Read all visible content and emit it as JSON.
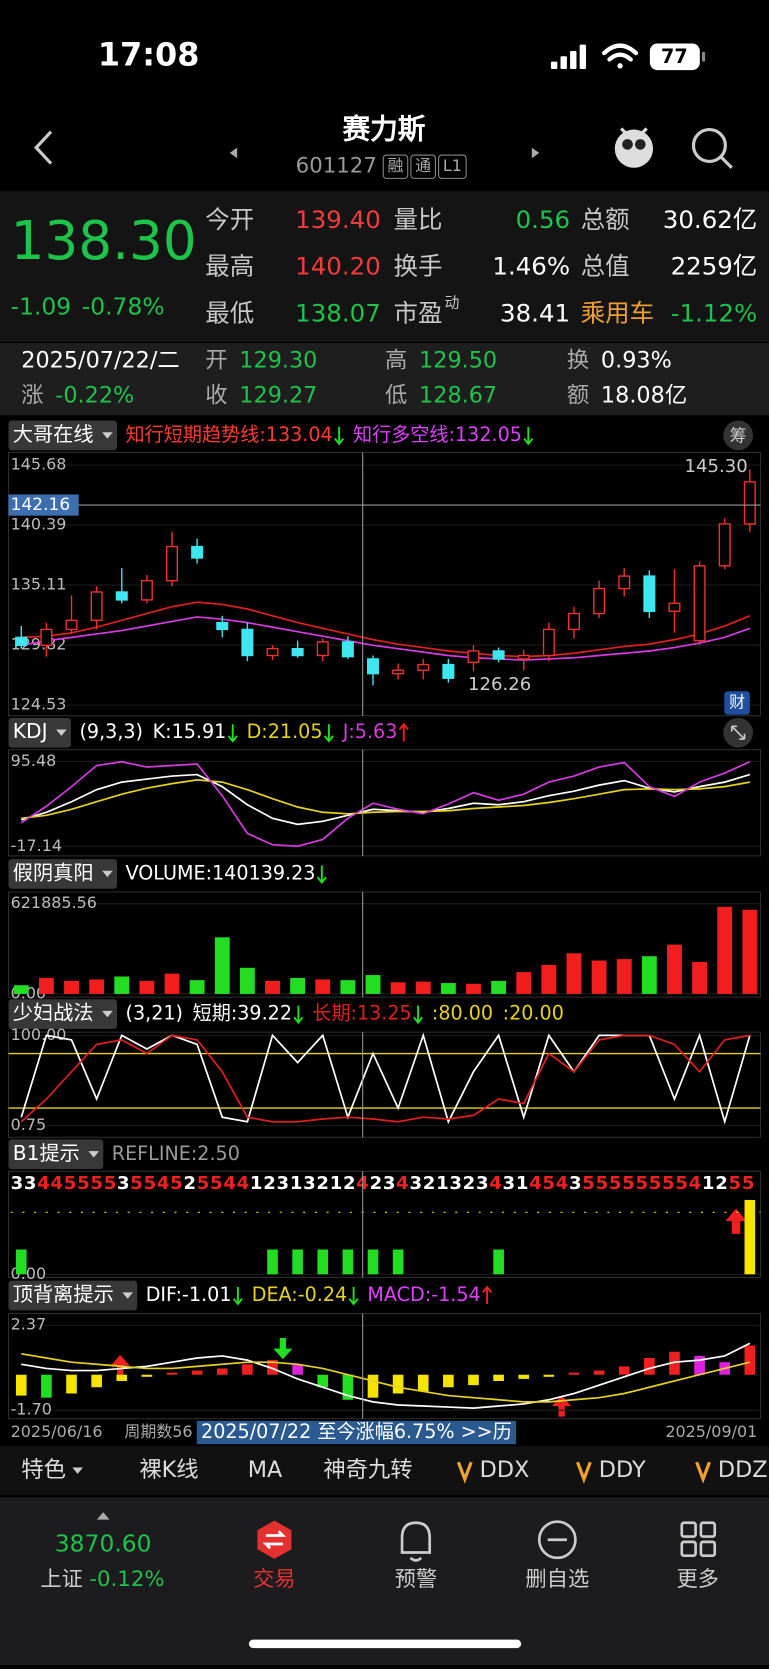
{
  "status_bar": {
    "time": "17:08",
    "battery": "77"
  },
  "nav": {
    "title": "赛力斯",
    "code": "601127",
    "badges": [
      "融",
      "通",
      "L1"
    ]
  },
  "quote": {
    "price": "138.30",
    "change": "-1.09",
    "change_pct": "-0.78%",
    "fields": [
      [
        {
          "label": "今开",
          "value": "139.40"
        },
        {
          "label": "量比",
          "value": "0.56"
        },
        {
          "label": "总额",
          "value": "30.62亿"
        }
      ],
      [
        {
          "label": "最高",
          "value": "140.20"
        },
        {
          "label": "换手",
          "value": "1.46%"
        },
        {
          "label": "总值",
          "value": "2259亿"
        }
      ],
      [
        {
          "label": "最低",
          "value": "138.07"
        },
        {
          "label": "市盈",
          "sup": "动",
          "value": "38.41"
        },
        {
          "label": "乘用车",
          "value": "-1.12%"
        }
      ]
    ]
  },
  "day_info": {
    "date": "2025/07/22/二",
    "items": [
      {
        "label": "开",
        "value": "129.30"
      },
      {
        "label": "高",
        "value": "129.50"
      },
      {
        "label": "换",
        "value": "0.93%"
      },
      {
        "label": "涨",
        "value": "-0.22%"
      },
      {
        "label": "收",
        "value": "129.27"
      },
      {
        "label": "低",
        "value": "128.67"
      },
      {
        "label": "额",
        "value": "18.08亿"
      }
    ]
  },
  "main_chart": {
    "type": "candlestick",
    "name": "大哥在线",
    "trend_line": "知行短期趋势线:133.04",
    "bull_bear_line": "知行多空线:132.05",
    "chip": "筹",
    "finance": "财",
    "ylim": [
      124.53,
      145.68
    ],
    "yticks": [
      145.68,
      140.39,
      135.11,
      129.82,
      124.53
    ],
    "crosshair_price": 142.16,
    "high_label": {
      "value": 145.3,
      "label": "145.30"
    },
    "low_label": 126.26,
    "up_color": "#f23030",
    "down_color": "#3ee6f0",
    "candles": [
      [
        130.5,
        131.5,
        129.5,
        129.8
      ],
      [
        129.8,
        131.8,
        128.8,
        131.2
      ],
      [
        131.2,
        134.2,
        130.8,
        132
      ],
      [
        132,
        135,
        131.2,
        134.5
      ],
      [
        134.5,
        136.6,
        133.5,
        133.8
      ],
      [
        133.8,
        136,
        133.5,
        135.5
      ],
      [
        135.5,
        139.8,
        135,
        138.5
      ],
      [
        138.5,
        139.2,
        137,
        137.5
      ],
      [
        131.8,
        132.4,
        130.5,
        131.2
      ],
      [
        131.2,
        131.8,
        128.4,
        128.9
      ],
      [
        128.9,
        129.8,
        128.5,
        129.5
      ],
      [
        129.5,
        130.2,
        128.7,
        128.9
      ],
      [
        128.9,
        130.4,
        128.4,
        130.1
      ],
      [
        130.1,
        130.6,
        128.6,
        128.8
      ],
      [
        128.6,
        128.9,
        126.26,
        127.3
      ],
      [
        127.3,
        128.2,
        126.8,
        127.6
      ],
      [
        127.6,
        128.6,
        126.8,
        128.1
      ],
      [
        128.1,
        128.6,
        126.5,
        126.9
      ],
      [
        128.3,
        129.8,
        127.5,
        129.3
      ],
      [
        129.3,
        129.6,
        128.3,
        128.6
      ],
      [
        128.6,
        129.4,
        127.6,
        128.9
      ],
      [
        128.9,
        131.8,
        128.4,
        131.2
      ],
      [
        131.2,
        133.2,
        130.4,
        132.6
      ],
      [
        132.6,
        135.5,
        132.2,
        134.8
      ],
      [
        134.8,
        136.6,
        134.1,
        135.9
      ],
      [
        135.9,
        136.4,
        132.2,
        132.8
      ],
      [
        132.8,
        136.5,
        130.9,
        133.5
      ],
      [
        130.2,
        137.2,
        129.8,
        136.8
      ],
      [
        136.8,
        141,
        136.5,
        140.5
      ],
      [
        140.5,
        145.3,
        139.8,
        144.2
      ]
    ],
    "trend": {
      "color": "#e02020",
      "values": [
        130.5,
        130.6,
        130.9,
        131.4,
        132,
        132.6,
        133.2,
        133.6,
        133.4,
        133,
        132.4,
        131.8,
        131.3,
        130.8,
        130.3,
        129.9,
        129.6,
        129.3,
        129.1,
        128.9,
        128.8,
        128.9,
        129.1,
        129.4,
        129.7,
        129.9,
        130.3,
        130.8,
        131.5,
        132.4
      ]
    },
    "bull_bear": {
      "color": "#d63be0",
      "values": [
        129.8,
        130.2,
        130.5,
        130.8,
        131.1,
        131.5,
        131.9,
        132.3,
        132.1,
        131.8,
        131.4,
        131,
        130.6,
        130.2,
        129.8,
        129.5,
        129.2,
        128.9,
        128.7,
        128.6,
        128.5,
        128.6,
        128.7,
        128.9,
        129.1,
        129.3,
        129.6,
        130,
        130.5,
        131.3
      ]
    }
  },
  "kdj": {
    "type": "line",
    "name": "KDJ",
    "params": "(9,3,3)",
    "k_label": "K:15.91",
    "d_label": "D:21.05",
    "j_label": "J:5.63",
    "ylim": [
      -17.14,
      95.48
    ],
    "yticks": [
      95.48,
      -17.14
    ],
    "series": [
      {
        "color": "#ffffff",
        "values": [
          18,
          28,
          42,
          58,
          68,
          72,
          76,
          78,
          62,
          38,
          20,
          12,
          16,
          24,
          32,
          30,
          28,
          33,
          40,
          38,
          42,
          50,
          56,
          64,
          70,
          60,
          55,
          62,
          68,
          78
        ]
      },
      {
        "color": "#e6d21e",
        "values": [
          20,
          24,
          32,
          42,
          52,
          60,
          66,
          71,
          68,
          58,
          46,
          35,
          28,
          26,
          28,
          29,
          29,
          30,
          33,
          35,
          37,
          41,
          46,
          52,
          58,
          59,
          58,
          59,
          62,
          68
        ]
      },
      {
        "color": "#d63be0",
        "values": [
          14,
          36,
          62,
          90,
          95,
          88,
          90,
          92,
          50,
          0,
          -15,
          -17,
          -8,
          20,
          40,
          32,
          26,
          39,
          54,
          44,
          52,
          68,
          76,
          88,
          94,
          62,
          49,
          68,
          80,
          95
        ]
      }
    ]
  },
  "volume": {
    "type": "bar",
    "name": "假阴真阳",
    "label": "VOLUME:140139.23",
    "ylim": [
      0,
      621885.56
    ],
    "yticks": [
      621885.56,
      {
        "value": 0,
        "label": "0.00"
      }
    ],
    "up_color": "#f21d1d",
    "down_color": "#22dd22",
    "values": [
      60000,
      110000,
      90000,
      100000,
      120000,
      90000,
      140000,
      95000,
      390000,
      180000,
      90000,
      110000,
      100000,
      95000,
      130000,
      80000,
      85000,
      75000,
      70000,
      90000,
      150000,
      200000,
      280000,
      230000,
      240000,
      260000,
      340000,
      220000,
      600000,
      580000
    ]
  },
  "strategy": {
    "type": "line",
    "name": "少妇战法",
    "params": "(3,21)",
    "short_label": "短期:39.22",
    "long_label": "长期:13.25",
    "upper_label": ":80.00",
    "lower_label": ":20.00",
    "ylim": [
      0.75,
      100
    ],
    "yticks": [
      {
        "value": 100,
        "label": "100.00"
      },
      0.75
    ],
    "levels": [
      80,
      20
    ],
    "level_color": "#e6d21e",
    "series": [
      {
        "color": "#ffffff",
        "values": [
          10,
          100,
          95,
          30,
          100,
          85,
          100,
          90,
          10,
          5,
          100,
          70,
          100,
          10,
          80,
          20,
          100,
          5,
          60,
          100,
          10,
          100,
          60,
          100,
          100,
          100,
          30,
          100,
          5,
          100
        ]
      },
      {
        "color": "#e02020",
        "values": [
          5,
          30,
          60,
          90,
          95,
          80,
          100,
          95,
          60,
          10,
          5,
          5,
          8,
          10,
          8,
          5,
          10,
          8,
          12,
          30,
          25,
          80,
          60,
          95,
          100,
          100,
          90,
          60,
          95,
          100
        ]
      }
    ]
  },
  "b1": {
    "type": "bar",
    "name": "B1提示",
    "refline_label": "REFLINE:2.50",
    "refline": 2.5,
    "signals": "33445555355452554412313212423432132343145435555555541255",
    "ylim": [
      0,
      3
    ],
    "yticks": [
      {
        "value": 0,
        "label": "0.00"
      }
    ],
    "bars": [
      {
        "color": "#22dd22",
        "values": [
          1,
          0,
          0,
          0,
          0,
          0,
          0,
          0,
          0,
          0,
          1,
          1,
          1,
          1,
          1,
          1,
          0,
          0,
          0,
          1,
          0,
          0,
          0,
          0,
          0,
          0,
          0,
          0,
          0,
          0
        ]
      },
      {
        "color": "#f5e400",
        "values": [
          0,
          0,
          0,
          0,
          0,
          0,
          0,
          0,
          0,
          0,
          0,
          0,
          0,
          0,
          0,
          0,
          0,
          0,
          0,
          0,
          0,
          0,
          0,
          0,
          0,
          0,
          0,
          0,
          0,
          3
        ]
      }
    ]
  },
  "macd": {
    "type": "bar",
    "name": "顶背离提示",
    "dif_label": "DIF:-1.01",
    "dea_label": "DEA:-0.24",
    "macd_label": "MACD:-1.54",
    "ylim": [
      -1.7,
      2.37
    ],
    "yticks": [
      2.37,
      {
        "value": -1.7,
        "label": "-1.70"
      }
    ],
    "hist": [
      -1,
      -1.1,
      -0.9,
      -0.6,
      -0.3,
      -0.1,
      0.1,
      0.2,
      0.3,
      0.5,
      0.7,
      0.5,
      -0.6,
      -1.2,
      -1.1,
      -0.9,
      -0.8,
      -0.6,
      -0.5,
      -0.3,
      -0.2,
      -0.1,
      0.1,
      0.2,
      0.4,
      0.8,
      1.1,
      0.9,
      0.6,
      1.4
    ],
    "dif": {
      "color": "#ffffff",
      "values": [
        0.5,
        0.3,
        0.2,
        0.2,
        0.3,
        0.4,
        0.6,
        0.8,
        0.9,
        0.7,
        0.3,
        -0.2,
        -0.6,
        -1,
        -1.3,
        -1.45,
        -1.5,
        -1.55,
        -1.6,
        -1.5,
        -1.4,
        -1.2,
        -0.9,
        -0.5,
        -0.1,
        0.3,
        0.6,
        0.7,
        0.9,
        1.5
      ]
    },
    "dea": {
      "color": "#e6d21e",
      "values": [
        1,
        0.8,
        0.6,
        0.5,
        0.4,
        0.3,
        0.3,
        0.4,
        0.5,
        0.6,
        0.6,
        0.5,
        0.3,
        0,
        -0.3,
        -0.6,
        -0.8,
        -1,
        -1.1,
        -1.2,
        -1.3,
        -1.3,
        -1.2,
        -1.1,
        -0.9,
        -0.6,
        -0.3,
        0,
        0.3,
        0.6
      ]
    }
  },
  "date_bar": {
    "start": "2025/06/16",
    "period": "周期数56",
    "promo": "2025/07/22 至今涨幅6.75%  >>历",
    "end": "2025/09/01"
  },
  "tabs": [
    "特色",
    "裸K线",
    "MA",
    "神奇九转",
    "DDX",
    "DDY",
    "DDZ"
  ],
  "bottom": {
    "index_value": "3870.60",
    "index_name": "上证",
    "index_change": "-0.12%",
    "items": [
      "交易",
      "预警",
      "删自选",
      "更多"
    ]
  }
}
